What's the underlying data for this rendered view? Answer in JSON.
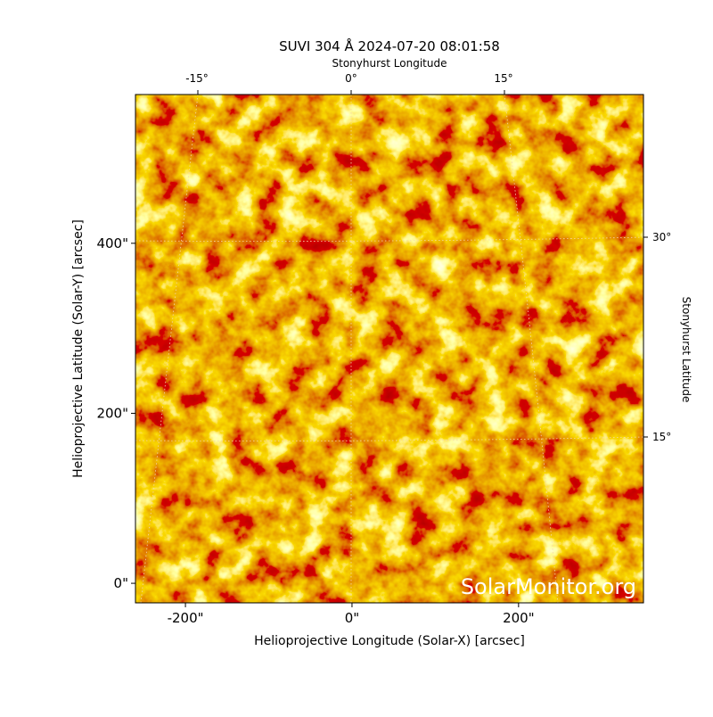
{
  "chart_data": {
    "type": "image",
    "title": "SUVI 304 Å 2024-07-20 08:01:58",
    "x_label": "Helioprojective Longitude (Solar-X) [arcsec]",
    "y_label": "Helioprojective Latitude (Solar-Y) [arcsec]",
    "top_label": "Stonyhurst Longitude",
    "right_label": "Stonyhurst Latitude",
    "top_ticks": [
      "-15°",
      "0°",
      "15°"
    ],
    "right_ticks": [
      "30°",
      "15°"
    ],
    "watermark": "SolarMonitor.org",
    "xlim": [
      -260,
      350
    ],
    "ylim": [
      -23,
      575
    ],
    "xticks": [
      {
        "value": -200,
        "label": "-200\""
      },
      {
        "value": 0,
        "label": "0\""
      },
      {
        "value": 200,
        "label": "200\""
      }
    ],
    "yticks": [
      {
        "value": 0,
        "label": "0\""
      },
      {
        "value": 200,
        "label": "200\""
      },
      {
        "value": 400,
        "label": "400\""
      }
    ]
  }
}
